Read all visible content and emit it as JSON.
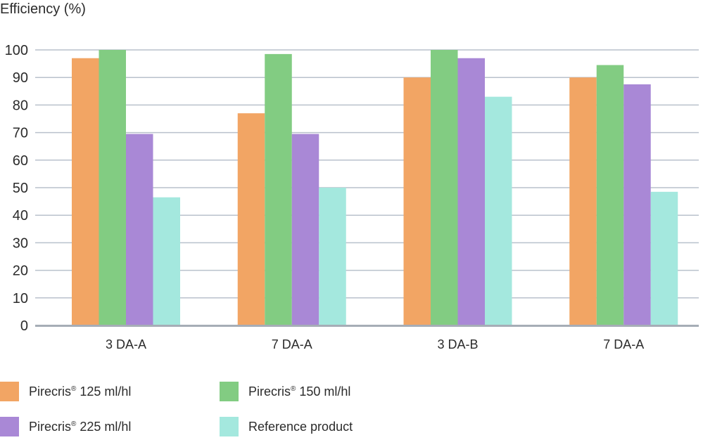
{
  "chart_data": {
    "type": "bar",
    "ylabel": "Efficiency (%)",
    "ylim": [
      0,
      100
    ],
    "yticks": [
      0,
      10,
      20,
      30,
      40,
      50,
      60,
      70,
      80,
      90,
      100
    ],
    "grid": true,
    "legend_position": "bottom",
    "categories": [
      "3 DA-A",
      "7 DA-A",
      "3 DA-B",
      "7 DA-A"
    ],
    "series": [
      {
        "name": "Pirecris® 125 ml/hl",
        "color": "#F2A564",
        "values": [
          97,
          77,
          90,
          90
        ]
      },
      {
        "name": "Pirecris® 150 ml/hl",
        "color": "#82CC82",
        "values": [
          100,
          98.5,
          100,
          94.5
        ]
      },
      {
        "name": "Pirecris® 225 ml/hl",
        "color": "#A988D6",
        "values": [
          69.5,
          69.5,
          97,
          87.5
        ]
      },
      {
        "name": "Reference product",
        "color": "#A4E8DE",
        "values": [
          46.5,
          50,
          83,
          48.5
        ]
      }
    ]
  }
}
